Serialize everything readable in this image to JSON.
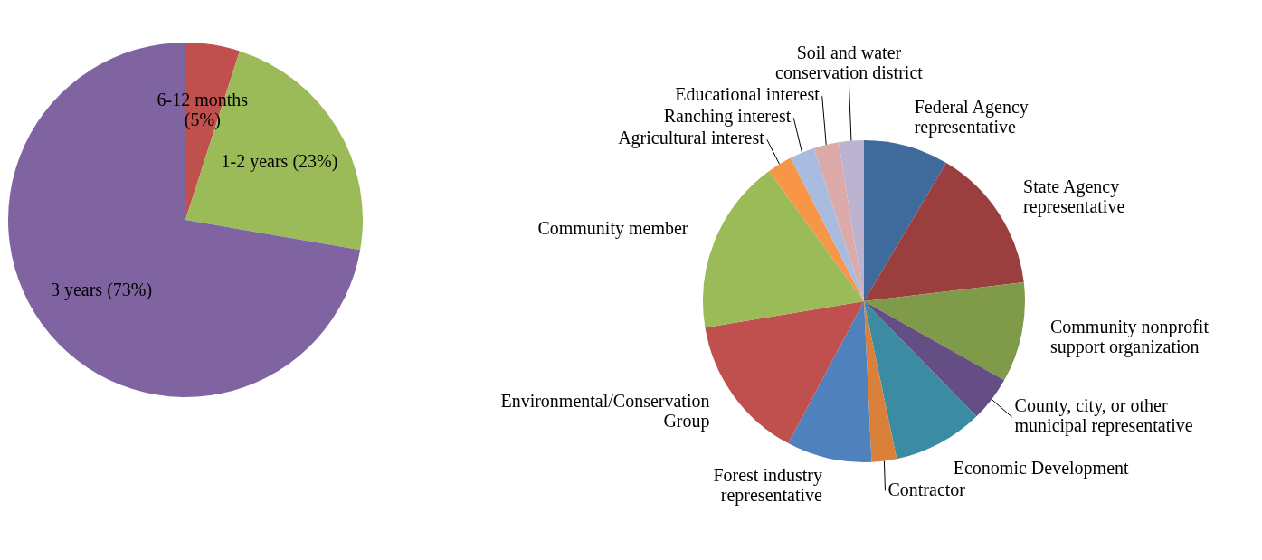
{
  "chart_data": [
    {
      "type": "pie",
      "categories": [
        "6-12 months",
        "1-2 years",
        "3 years"
      ],
      "values": [
        5,
        23,
        73
      ],
      "value_labels": [
        "(5%)",
        "(23%)",
        "(73%)"
      ],
      "colors": [
        "#c0504d",
        "#9bbb59",
        "#8064a2"
      ]
    },
    {
      "type": "pie",
      "categories": [
        "Federal Agency representative",
        "State Agency representative",
        "Community nonprofit support organization",
        "County, city, or other municipal representative",
        "Economic Development",
        "Contractor",
        "Forest industry representative",
        "Environmental/Conservation Group",
        "Community member",
        "Agricultural interest",
        "Ranching interest",
        "Educational interest",
        "Soil and water conservation district"
      ],
      "values": [
        8.5,
        14.5,
        10,
        4.5,
        9,
        2.5,
        8.5,
        14.5,
        17.5,
        2.5,
        2.5,
        2.5,
        2.5
      ],
      "colors": [
        "#3f6a9c",
        "#9a3f3d",
        "#7f9a48",
        "#654e84",
        "#3b8ca2",
        "#d9803a",
        "#4f81bd",
        "#c0504d",
        "#9bbb59",
        "#f79646",
        "#a9bce0",
        "#ddaaaa",
        "#bcb3d0"
      ]
    }
  ]
}
